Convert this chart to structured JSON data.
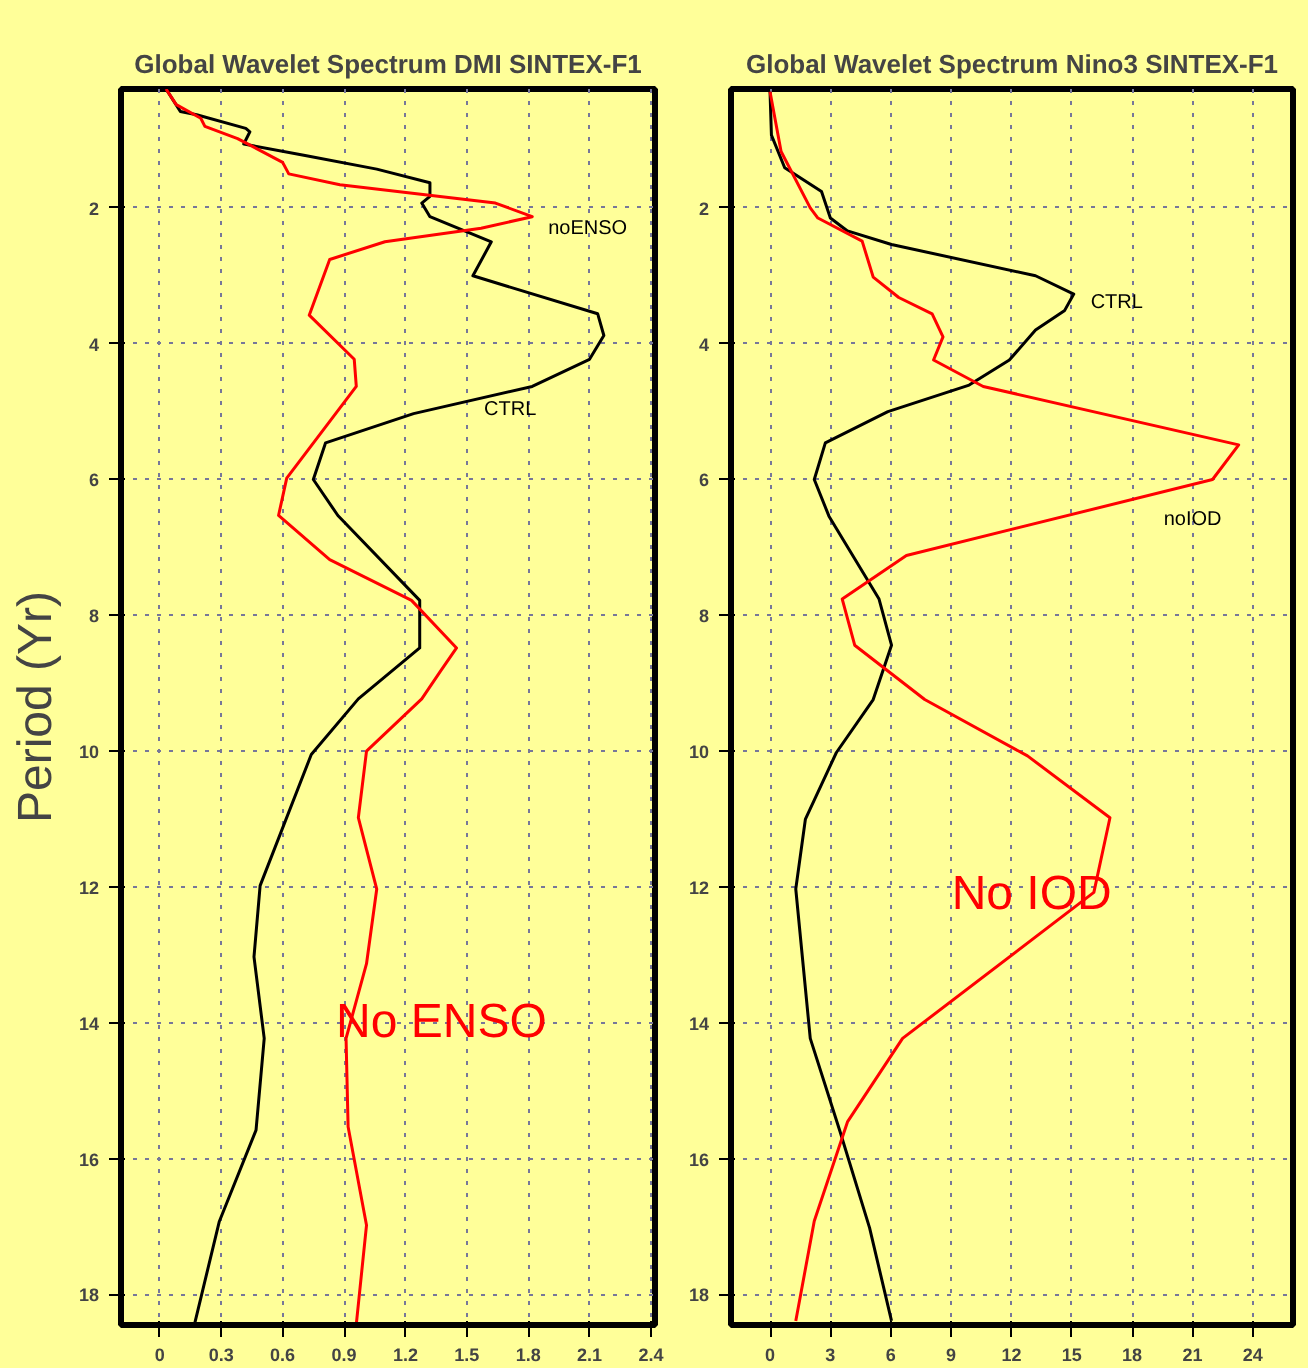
{
  "chart_data": [
    {
      "type": "line",
      "title": "Global Wavelet Spectrum DMI SINTEX-F1",
      "ylabel": "Period (Yr)",
      "xlim": [
        -0.19,
        2.42
      ],
      "ylim": [
        18.45,
        0.25
      ],
      "xticks": [
        0,
        0.3,
        0.6,
        0.9,
        1.2,
        1.5,
        1.8,
        2.1,
        2.4
      ],
      "yticks": [
        2,
        4,
        6,
        8,
        10,
        12,
        14,
        16,
        18
      ],
      "grid": true,
      "marker": "none",
      "line_style": "solid",
      "series": [
        {
          "color": "#000000",
          "values": [
            0.25,
            0.58,
            0.63,
            0.83,
            0.88,
            1.06,
            1.23,
            1.43,
            1.63,
            1.83,
            1.93,
            2.13,
            2.5,
            3.0,
            3.56,
            3.88,
            4.23,
            4.63,
            5.03,
            5.46,
            6.0,
            6.53,
            7.78,
            8.48,
            9.23,
            10.05,
            11.98,
            13.03,
            14.23,
            15.58,
            16.93,
            18.43
          ],
          "x": [
            0.03,
            0.1,
            0.18,
            0.42,
            0.44,
            0.41,
            0.71,
            1.06,
            1.32,
            1.32,
            1.28,
            1.32,
            1.62,
            1.53,
            2.14,
            2.17,
            2.1,
            1.82,
            1.24,
            0.81,
            0.75,
            0.87,
            1.27,
            1.27,
            0.97,
            0.74,
            0.49,
            0.46,
            0.51,
            0.47,
            0.29,
            0.17
          ]
        },
        {
          "color": "#ff0000",
          "values": [
            0.25,
            0.48,
            0.68,
            0.8,
            0.98,
            1.33,
            1.5,
            1.66,
            1.93,
            2.13,
            2.3,
            2.5,
            2.76,
            3.58,
            4.23,
            4.63,
            5.98,
            6.53,
            7.18,
            7.78,
            8.48,
            8.83,
            9.23,
            10.0,
            10.98,
            12.03,
            13.13,
            14.23,
            15.53,
            16.98,
            18.44
          ],
          "x": [
            0.03,
            0.08,
            0.2,
            0.22,
            0.38,
            0.6,
            0.63,
            0.88,
            1.64,
            1.82,
            1.57,
            1.1,
            0.83,
            0.73,
            0.95,
            0.96,
            0.62,
            0.58,
            0.83,
            1.23,
            1.45,
            1.37,
            1.28,
            1.01,
            0.97,
            1.06,
            1.01,
            0.91,
            0.92,
            1.01,
            0.96
          ]
        }
      ],
      "annotations": [
        "noENSO",
        "CTRL",
        "No ENSO"
      ]
    },
    {
      "type": "line",
      "title": "Global Wavelet Spectrum Nino3 SINTEX-F1",
      "xlim": [
        -1.94,
        26.0
      ],
      "ylim": [
        18.45,
        0.25
      ],
      "xticks": [
        0,
        3,
        6,
        9,
        12,
        15,
        18,
        21,
        24
      ],
      "yticks": [
        2,
        4,
        6,
        8,
        10,
        12,
        14,
        16,
        18
      ],
      "grid": true,
      "marker": "none",
      "line_style": "solid",
      "series": [
        {
          "color": "#000000",
          "values": [
            0.29,
            0.93,
            1.41,
            1.76,
            2.15,
            2.34,
            2.54,
            3.0,
            3.27,
            3.51,
            3.8,
            4.24,
            4.61,
            5.0,
            5.46,
            6.0,
            6.54,
            7.76,
            8.44,
            9.24,
            10.02,
            11.0,
            12.03,
            14.23,
            15.6,
            17.02,
            18.39
          ],
          "x": [
            0,
            0.07,
            0.73,
            2.56,
            3.0,
            3.85,
            6.04,
            13.2,
            15.1,
            14.65,
            13.2,
            11.9,
            9.9,
            5.86,
            2.75,
            2.2,
            2.93,
            5.42,
            6.04,
            5.13,
            3.3,
            1.76,
            1.28,
            2.0,
            3.48,
            4.95,
            6.04
          ]
        },
        {
          "color": "#ff0000",
          "values": [
            0.29,
            1.17,
            2.0,
            2.15,
            2.49,
            3.02,
            3.32,
            3.56,
            3.9,
            4.24,
            4.63,
            5.49,
            6.0,
            7.12,
            7.76,
            8.44,
            9.24,
            10.07,
            10.98,
            12.08,
            14.23,
            15.46,
            16.92,
            18.39
          ],
          "x": [
            0,
            0.55,
            2.0,
            2.38,
            4.58,
            5.13,
            6.4,
            8.06,
            8.6,
            8.13,
            10.6,
            23.3,
            22.0,
            6.78,
            3.59,
            4.21,
            7.69,
            12.8,
            16.9,
            16.1,
            6.59,
            3.85,
            2.2,
            1.28
          ]
        }
      ],
      "annotations": [
        "CTRL",
        "noIOD",
        "No IOD"
      ]
    }
  ]
}
